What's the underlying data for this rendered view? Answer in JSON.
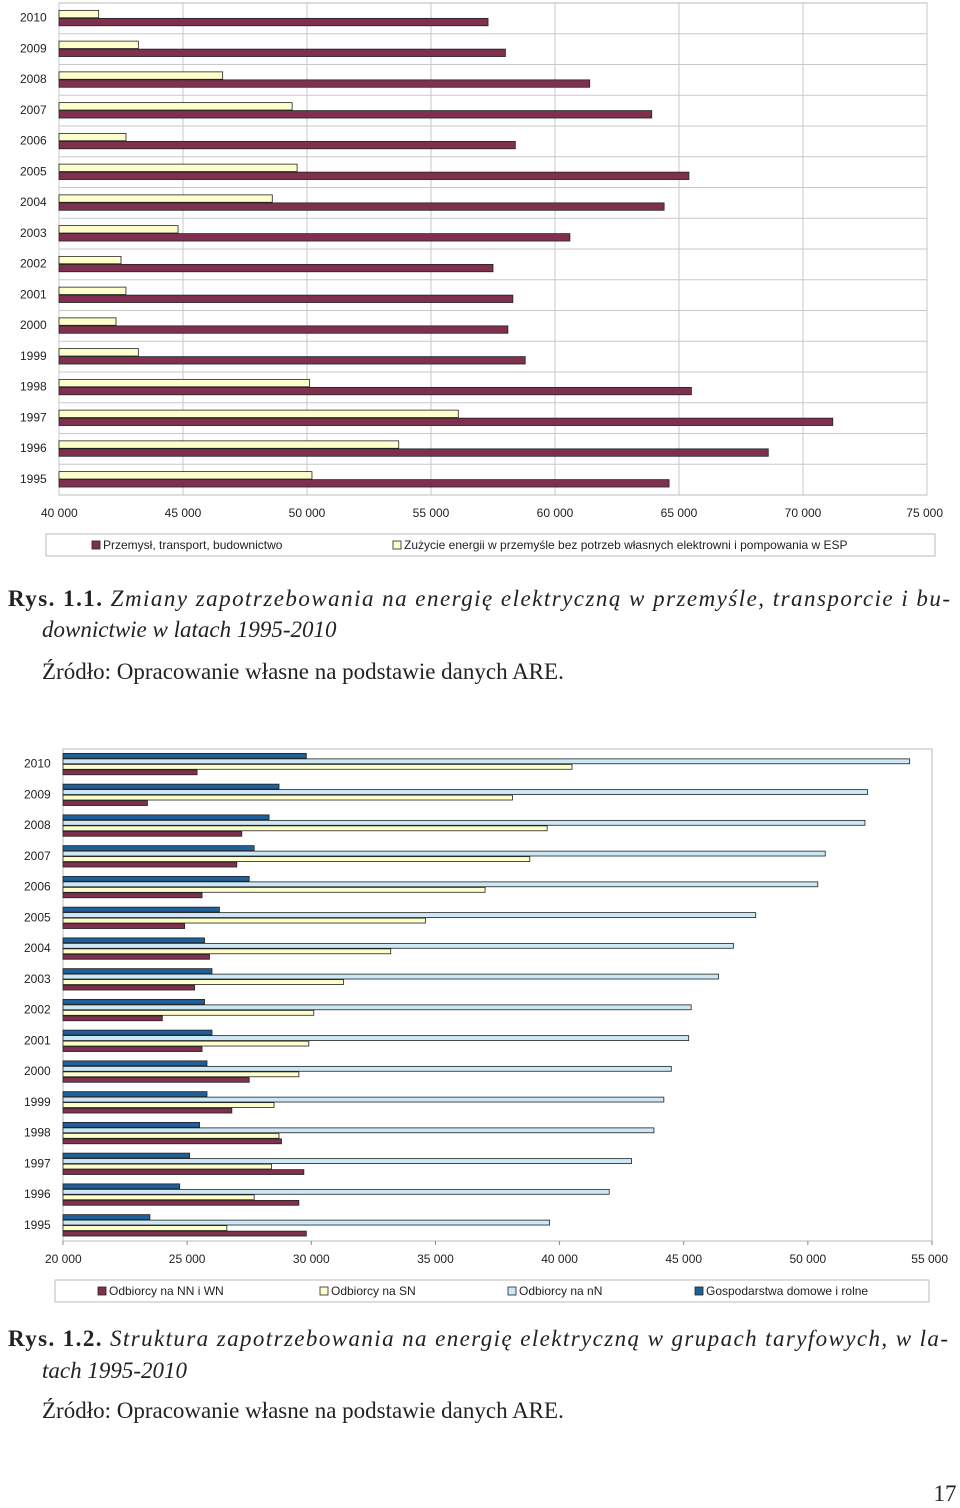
{
  "chart_data": [
    {
      "type": "bar",
      "orientation": "horizontal",
      "categories": [
        "1995",
        "1996",
        "1997",
        "1998",
        "1999",
        "2000",
        "2001",
        "2002",
        "2003",
        "2004",
        "2005",
        "2006",
        "2007",
        "2008",
        "2009",
        "2010"
      ],
      "series": [
        {
          "name": "Przemysł, transport, budownictwo",
          "color": "#80304f",
          "values": [
            64600,
            68600,
            71200,
            65500,
            58800,
            58100,
            58300,
            57500,
            60600,
            64400,
            65400,
            58400,
            63900,
            61400,
            58000,
            57300
          ]
        },
        {
          "name": "Zużycie energii w przemyśle bez potrzeb własnych elektrowni i pompowania w ESP",
          "color": "#ffffcc",
          "values": [
            50200,
            53700,
            56100,
            50100,
            43200,
            42300,
            42700,
            42500,
            44800,
            48600,
            49600,
            42700,
            49400,
            46600,
            43200,
            41600
          ]
        }
      ],
      "xlim": [
        40000,
        75000
      ],
      "xticks": [
        {
          "value": 40000,
          "label": "40 000"
        },
        {
          "value": 45000,
          "label": "45 000"
        },
        {
          "value": 50000,
          "label": "50 000"
        },
        {
          "value": 55000,
          "label": "55 000"
        },
        {
          "value": 60000,
          "label": "60 000"
        },
        {
          "value": 65000,
          "label": "65 000"
        },
        {
          "value": 70000,
          "label": "70 000"
        },
        {
          "value": 75000,
          "label": "75 000"
        }
      ],
      "grid": true,
      "legend": "bottom",
      "caption_label": "Rys. 1.1.",
      "caption_lines": [
        "Zmiany zapotrzebowania na energię elektryczną w przemyśle, transporcie i bu-",
        "downictwie w latach 1995-2010"
      ],
      "source": "Źródło: Opracowanie własne na podstawie danych ARE."
    },
    {
      "type": "bar",
      "orientation": "horizontal",
      "categories": [
        "1995",
        "1996",
        "1997",
        "1998",
        "1999",
        "2000",
        "2001",
        "2002",
        "2003",
        "2004",
        "2005",
        "2006",
        "2007",
        "2008",
        "2009",
        "2010"
      ],
      "series": [
        {
          "name": "Odbiorcy na NN i WN",
          "color": "#80304f",
          "values": [
            29800,
            29500,
            29700,
            28800,
            26800,
            27500,
            25600,
            24000,
            25300,
            25900,
            24900,
            25600,
            27000,
            27200,
            23400,
            25400
          ]
        },
        {
          "name": "Odbiorcy na SN",
          "color": "#ffffcc",
          "values": [
            26600,
            27700,
            28400,
            28700,
            28500,
            29500,
            29900,
            30100,
            31300,
            33200,
            34600,
            37000,
            38800,
            39500,
            38100,
            40500
          ]
        },
        {
          "name": "Odbiorcy na nN",
          "color": "#cce8f4",
          "values": [
            39600,
            42000,
            42900,
            43800,
            44200,
            44500,
            45200,
            45300,
            46400,
            47000,
            47900,
            50400,
            50700,
            52300,
            52400,
            54100
          ]
        },
        {
          "name": "Gospodarstwa domowe i rolne",
          "color": "#1f5f9a",
          "values": [
            23500,
            24700,
            25100,
            25500,
            25800,
            25800,
            26000,
            25700,
            26000,
            25700,
            26300,
            27500,
            27700,
            28300,
            28700,
            29800
          ]
        }
      ],
      "xlim": [
        20000,
        55000
      ],
      "xticks": [
        {
          "value": 20000,
          "label": "20 000"
        },
        {
          "value": 25000,
          "label": "25 000"
        },
        {
          "value": 30000,
          "label": "30 000"
        },
        {
          "value": 35000,
          "label": "35 000"
        },
        {
          "value": 40000,
          "label": "40 000"
        },
        {
          "value": 45000,
          "label": "45 000"
        },
        {
          "value": 50000,
          "label": "50 000"
        },
        {
          "value": 55000,
          "label": "55 000"
        }
      ],
      "grid": false,
      "legend": "bottom",
      "caption_label": "Rys. 1.2.",
      "caption_lines": [
        "Struktura zapotrzebowania na energię elektryczną w grupach taryfowych, w la-",
        "tach 1995-2010"
      ],
      "source": "Źródło: Opracowanie własne na podstawie danych ARE."
    }
  ],
  "page_number": "17"
}
